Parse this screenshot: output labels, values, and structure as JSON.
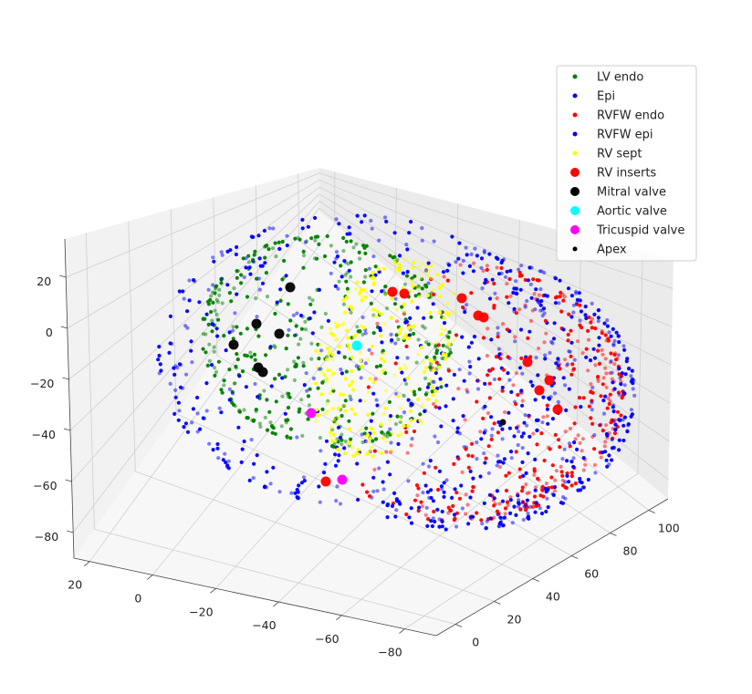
{
  "chart_data": {
    "type": "scatter",
    "title": "",
    "projection": "3d",
    "grid": true,
    "legend_position": "top-right",
    "axes": {
      "x": {
        "label": "",
        "ticks": [
          20,
          0,
          -20,
          -40,
          -60,
          -80
        ],
        "range": [
          25,
          -90
        ]
      },
      "y": {
        "label": "",
        "ticks": [
          0,
          20,
          40,
          60,
          80,
          100
        ],
        "range": [
          -10,
          110
        ]
      },
      "z": {
        "label": "",
        "ticks": [
          20,
          0,
          -20,
          -40,
          -60,
          -80
        ],
        "range": [
          -90,
          35
        ]
      }
    },
    "series": [
      {
        "name": "LV endo",
        "color": "#008000",
        "marker": "small",
        "shape": "ellipsoid",
        "center": [
          -20,
          50,
          -20
        ],
        "radii": [
          35,
          30,
          38
        ]
      },
      {
        "name": "Epi",
        "color": "#0000ff",
        "marker": "small",
        "shape": "ellipsoid",
        "center": [
          -30,
          50,
          -25
        ],
        "radii": [
          55,
          52,
          50
        ]
      },
      {
        "name": "RVFW endo",
        "color": "#ff0000",
        "marker": "small",
        "shape": "shell",
        "center": [
          -55,
          60,
          -35
        ],
        "radii": [
          45,
          45,
          45
        ]
      },
      {
        "name": "RVFW epi",
        "color": "#0000ff",
        "marker": "small",
        "shape": "shell",
        "center": [
          -55,
          60,
          -35
        ],
        "radii": [
          48,
          48,
          48
        ]
      },
      {
        "name": "RV sept",
        "color": "#ffff00",
        "marker": "small",
        "shape": "sheet",
        "center": [
          -35,
          55,
          -25
        ],
        "radii": [
          8,
          35,
          35
        ]
      }
    ],
    "landmarks": [
      {
        "name": "RV inserts",
        "color": "#ff0000",
        "marker": "large"
      },
      {
        "name": "Mitral valve",
        "color": "#000000",
        "marker": "large"
      },
      {
        "name": "Aortic valve",
        "color": "#00ffff",
        "marker": "large"
      },
      {
        "name": "Tricuspid valve",
        "color": "#ff00ff",
        "marker": "large"
      },
      {
        "name": "Apex",
        "color": "#000000",
        "marker": "small"
      }
    ]
  }
}
